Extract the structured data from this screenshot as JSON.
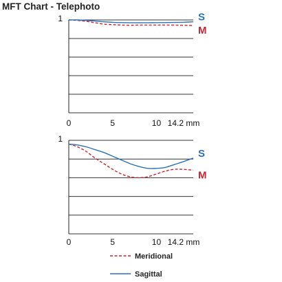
{
  "title": "MFT Chart - Telephoto",
  "colors": {
    "sagittal": "#2a6fba",
    "meridional": "#cc2233",
    "grid": "#333333",
    "axis": "#222222"
  },
  "legend": {
    "meridional": "Meridional",
    "sagittal": "Sagittal"
  },
  "chart_data": [
    {
      "type": "line",
      "title": "",
      "x_ticks": [
        "0",
        "5",
        "10",
        "14.2 mm"
      ],
      "x_tick_values": [
        0,
        5,
        10,
        14.2
      ],
      "xlim": [
        0,
        14.2
      ],
      "ylim": [
        0,
        1
      ],
      "y_ticks": [
        "1"
      ],
      "y_tick_values": [
        1
      ],
      "grid": true,
      "gridlines_y": [
        1,
        0.8,
        0.6,
        0.4,
        0.2,
        0
      ],
      "series": [
        {
          "name": "S",
          "key": "sagittal",
          "style": "solid",
          "x": [
            0,
            1,
            2,
            3,
            4,
            5,
            6,
            7,
            8,
            9,
            10,
            11,
            12,
            13,
            14.2
          ],
          "y": [
            1.0,
            1.0,
            0.995,
            0.988,
            0.98,
            0.975,
            0.972,
            0.97,
            0.97,
            0.97,
            0.971,
            0.972,
            0.973,
            0.975,
            0.98
          ]
        },
        {
          "name": "M",
          "key": "meridional",
          "style": "dashed",
          "x": [
            0,
            1,
            2,
            3,
            4,
            5,
            6,
            7,
            8,
            9,
            10,
            11,
            12,
            13,
            14.2
          ],
          "y": [
            1.0,
            0.995,
            0.985,
            0.97,
            0.955,
            0.95,
            0.945,
            0.943,
            0.945,
            0.945,
            0.945,
            0.945,
            0.945,
            0.942,
            0.94
          ]
        }
      ]
    },
    {
      "type": "line",
      "title": "",
      "x_ticks": [
        "0",
        "5",
        "10",
        "14.2 mm"
      ],
      "x_tick_values": [
        0,
        5,
        10,
        14.2
      ],
      "xlim": [
        0,
        14.2
      ],
      "ylim": [
        0,
        1
      ],
      "y_ticks": [
        "1"
      ],
      "y_tick_values": [
        1
      ],
      "grid": true,
      "gridlines_y": [
        1,
        0.8,
        0.6,
        0.4,
        0.2,
        0
      ],
      "series": [
        {
          "name": "S",
          "key": "sagittal",
          "style": "solid",
          "x": [
            0,
            1,
            2,
            3,
            4,
            5,
            6,
            7,
            8,
            9,
            10,
            11,
            12,
            13,
            14.2
          ],
          "y": [
            0.96,
            0.95,
            0.93,
            0.9,
            0.87,
            0.83,
            0.79,
            0.75,
            0.72,
            0.7,
            0.7,
            0.71,
            0.74,
            0.77,
            0.81
          ]
        },
        {
          "name": "M",
          "key": "meridional",
          "style": "dashed",
          "x": [
            0,
            1,
            2,
            3,
            4,
            5,
            6,
            7,
            8,
            9,
            10,
            11,
            12,
            13,
            14.2
          ],
          "y": [
            0.96,
            0.93,
            0.88,
            0.81,
            0.75,
            0.69,
            0.64,
            0.61,
            0.6,
            0.61,
            0.64,
            0.67,
            0.69,
            0.69,
            0.68
          ]
        }
      ]
    }
  ]
}
